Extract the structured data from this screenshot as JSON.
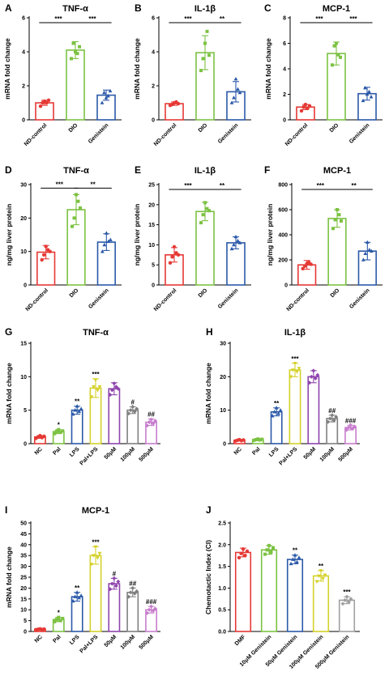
{
  "chart_data": [
    {
      "letter": "A",
      "title": "TNF-α",
      "ylabel": "mRNA fold change",
      "type": "bar",
      "categories": [
        "ND-control",
        "DIO",
        "Genistein"
      ],
      "values": [
        1.0,
        4.1,
        1.45
      ],
      "errors": [
        0.15,
        0.5,
        0.3
      ],
      "points": [
        [
          0.8,
          1.0,
          1.1,
          1.0,
          1.15
        ],
        [
          3.6,
          4.5,
          4.0,
          3.9,
          4.3
        ],
        [
          1.0,
          1.6,
          1.3,
          1.4,
          1.7
        ]
      ],
      "ylim": [
        0,
        6
      ],
      "yticks": [
        0,
        2,
        4,
        6
      ],
      "colors": [
        "#e53935",
        "#7cc242",
        "#2b59a8"
      ],
      "brackets": [
        {
          "from": 0,
          "to": 1,
          "label": "***"
        },
        {
          "from": 1,
          "to": 2,
          "label": "***"
        }
      ],
      "annotations": []
    },
    {
      "letter": "B",
      "title": "IL-1β",
      "ylabel": "mRNA fold change",
      "type": "bar",
      "categories": [
        "ND-control",
        "DIO",
        "Genistein"
      ],
      "values": [
        0.95,
        3.95,
        1.65
      ],
      "errors": [
        0.1,
        1.0,
        0.6
      ],
      "points": [
        [
          0.85,
          0.9,
          1.0,
          1.05,
          0.95
        ],
        [
          2.9,
          3.6,
          4.5,
          5.2,
          3.8
        ],
        [
          1.0,
          1.3,
          2.4,
          1.8,
          1.6
        ]
      ],
      "ylim": [
        0,
        6
      ],
      "yticks": [
        0,
        2,
        4,
        6
      ],
      "colors": [
        "#e53935",
        "#7cc242",
        "#2b59a8"
      ],
      "brackets": [
        {
          "from": 0,
          "to": 1,
          "label": "***"
        },
        {
          "from": 1,
          "to": 2,
          "label": "**"
        }
      ],
      "annotations": []
    },
    {
      "letter": "C",
      "title": "MCP-1",
      "ylabel": "mRNA fold change",
      "type": "bar",
      "categories": [
        "ND-control",
        "DIO",
        "Genistein"
      ],
      "values": [
        1.0,
        5.2,
        2.05
      ],
      "errors": [
        0.2,
        0.9,
        0.5
      ],
      "points": [
        [
          0.7,
          1.0,
          1.2,
          0.9,
          1.1
        ],
        [
          4.3,
          5.8,
          6.0,
          5.1,
          4.9
        ],
        [
          1.5,
          2.5,
          2.0,
          2.2,
          1.8
        ]
      ],
      "ylim": [
        0,
        8
      ],
      "yticks": [
        0,
        2,
        4,
        6,
        8
      ],
      "colors": [
        "#e53935",
        "#7cc242",
        "#2b59a8"
      ],
      "brackets": [
        {
          "from": 0,
          "to": 1,
          "label": "***"
        },
        {
          "from": 1,
          "to": 2,
          "label": "***"
        }
      ],
      "annotations": []
    },
    {
      "letter": "D",
      "title": "TNF-α",
      "ylabel": "ng/mg liver protein",
      "type": "bar",
      "categories": [
        "ND-control",
        "DIO",
        "Genistein"
      ],
      "values": [
        9.8,
        22.5,
        12.8
      ],
      "errors": [
        2.0,
        4.5,
        2.5
      ],
      "points": [
        [
          7.5,
          9.0,
          11.5,
          10.5,
          10.0
        ],
        [
          17.5,
          20.0,
          27.0,
          25.0,
          23.0
        ],
        [
          10.0,
          12.0,
          15.5,
          13.0,
          13.5
        ]
      ],
      "ylim": [
        0,
        30
      ],
      "yticks": [
        0,
        10,
        20,
        30
      ],
      "colors": [
        "#e53935",
        "#7cc242",
        "#2b59a8"
      ],
      "brackets": [
        {
          "from": 0,
          "to": 1,
          "label": "***"
        },
        {
          "from": 1,
          "to": 2,
          "label": "**"
        }
      ],
      "annotations": []
    },
    {
      "letter": "E",
      "title": "IL-1β",
      "ylabel": "ng/mg liver protein",
      "type": "bar",
      "categories": [
        "ND-control",
        "DIO",
        "Genistein"
      ],
      "values": [
        7.5,
        18.3,
        10.5
      ],
      "errors": [
        1.8,
        2.3,
        1.5
      ],
      "points": [
        [
          5.5,
          7.0,
          9.5,
          8.0,
          7.5
        ],
        [
          15.5,
          17.5,
          20.5,
          19.0,
          18.5
        ],
        [
          9.0,
          10.0,
          12.0,
          11.0,
          10.5
        ]
      ],
      "ylim": [
        0,
        25
      ],
      "yticks": [
        0,
        5,
        10,
        15,
        20,
        25
      ],
      "colors": [
        "#e53935",
        "#7cc242",
        "#2b59a8"
      ],
      "brackets": [
        {
          "from": 0,
          "to": 1,
          "label": "***"
        },
        {
          "from": 1,
          "to": 2,
          "label": "**"
        }
      ],
      "annotations": []
    },
    {
      "letter": "F",
      "title": "MCP-1",
      "ylabel": "ng/mg liver protein",
      "type": "bar",
      "categories": [
        "ND-control",
        "DIO",
        "Genistein"
      ],
      "values": [
        160,
        530,
        270
      ],
      "errors": [
        35,
        70,
        70
      ],
      "points": [
        [
          130,
          150,
          170,
          180,
          165
        ],
        [
          450,
          520,
          600,
          560,
          510
        ],
        [
          200,
          250,
          340,
          280,
          270
        ]
      ],
      "ylim": [
        0,
        800
      ],
      "yticks": [
        0,
        200,
        400,
        600,
        800
      ],
      "colors": [
        "#e53935",
        "#7cc242",
        "#2b59a8"
      ],
      "brackets": [
        {
          "from": 0,
          "to": 1,
          "label": "***"
        },
        {
          "from": 1,
          "to": 2,
          "label": "**"
        }
      ],
      "annotations": []
    },
    {
      "letter": "G",
      "title": "TNF-α",
      "ylabel": "mRNA fold change",
      "type": "bar",
      "categories": [
        "NC",
        "Pal",
        "LPS",
        "Pal+LPS",
        "50μM",
        "100μM",
        "500μM"
      ],
      "values": [
        1.0,
        1.8,
        5.0,
        8.3,
        8.2,
        5.0,
        3.2
      ],
      "errors": [
        0.2,
        0.3,
        0.6,
        1.4,
        0.9,
        0.5,
        0.5
      ],
      "points": [
        [
          0.8,
          1.0,
          1.2,
          0.9,
          1.1
        ],
        [
          1.5,
          1.8,
          2.1,
          1.7,
          1.9
        ],
        [
          4.4,
          5.0,
          5.6,
          4.8,
          5.2
        ],
        [
          7.0,
          8.5,
          9.5,
          8.0,
          8.5
        ],
        [
          7.3,
          8.0,
          9.0,
          8.5,
          8.2
        ],
        [
          4.5,
          5.0,
          5.5,
          4.8,
          5.2
        ],
        [
          2.7,
          3.2,
          3.6,
          3.0,
          3.4
        ]
      ],
      "ylim": [
        0,
        15
      ],
      "yticks": [
        0,
        5,
        10,
        15
      ],
      "colors": [
        "#e53935",
        "#7cc242",
        "#2b59a8",
        "#d4d12a",
        "#8e44ad",
        "#808080",
        "#c77dcd"
      ],
      "brackets": [],
      "annotations": [
        "",
        "*",
        "**",
        "***",
        "",
        "#",
        "##"
      ]
    },
    {
      "letter": "H",
      "title": "IL-1β",
      "ylabel": "mRNA fold change",
      "type": "bar",
      "categories": [
        "NC",
        "Pal",
        "LPS",
        "Pal+LPS",
        "50μM",
        "100μM",
        "500μM"
      ],
      "values": [
        1.0,
        1.2,
        9.5,
        22.0,
        20.0,
        7.5,
        4.8
      ],
      "errors": [
        0.2,
        0.3,
        1.2,
        2.0,
        1.8,
        1.0,
        0.7
      ],
      "points": [
        [
          0.8,
          1.0,
          1.2,
          0.9,
          1.1
        ],
        [
          1.0,
          1.2,
          1.4,
          1.1,
          1.3
        ],
        [
          8.3,
          9.5,
          10.7,
          9.0,
          10.0
        ],
        [
          20.0,
          22.0,
          24.0,
          21.5,
          22.5
        ],
        [
          18.2,
          20.0,
          21.8,
          19.5,
          20.5
        ],
        [
          6.5,
          7.5,
          8.5,
          7.0,
          8.0
        ],
        [
          4.1,
          4.8,
          5.5,
          4.5,
          5.1
        ]
      ],
      "ylim": [
        0,
        30
      ],
      "yticks": [
        0,
        10,
        20,
        30
      ],
      "colors": [
        "#e53935",
        "#7cc242",
        "#2b59a8",
        "#d4d12a",
        "#8e44ad",
        "#808080",
        "#c77dcd"
      ],
      "brackets": [],
      "annotations": [
        "",
        "",
        "**",
        "***",
        "",
        "##",
        "###"
      ]
    },
    {
      "letter": "I",
      "title": "MCP-1",
      "ylabel": "mRNA fold change",
      "type": "bar",
      "categories": [
        "NC",
        "Pal",
        "LPS",
        "Pal+LPS",
        "50μM",
        "100μM",
        "500μM"
      ],
      "values": [
        1.0,
        5.5,
        16.0,
        35.0,
        22.0,
        18.0,
        10.0
      ],
      "errors": [
        0.2,
        1.0,
        2.0,
        4.0,
        2.5,
        2.0,
        1.5
      ],
      "points": [
        [
          0.8,
          1.0,
          1.2,
          0.9,
          1.1
        ],
        [
          4.5,
          5.5,
          6.5,
          5.0,
          6.0
        ],
        [
          14.0,
          16.0,
          18.0,
          15.5,
          16.5
        ],
        [
          31.0,
          35.0,
          39.0,
          34.0,
          36.0
        ],
        [
          19.5,
          22.0,
          24.5,
          21.0,
          23.0
        ],
        [
          16.0,
          18.0,
          20.0,
          17.5,
          18.5
        ],
        [
          8.5,
          10.0,
          11.5,
          9.5,
          10.5
        ]
      ],
      "ylim": [
        0,
        50
      ],
      "yticks": [
        0,
        5,
        10,
        15,
        20,
        25,
        30,
        35,
        40,
        45,
        50
      ],
      "colors": [
        "#e53935",
        "#7cc242",
        "#2b59a8",
        "#d4d12a",
        "#8e44ad",
        "#808080",
        "#c77dcd"
      ],
      "brackets": [],
      "annotations": [
        "",
        "*",
        "**",
        "***",
        "#",
        "##",
        "###"
      ]
    },
    {
      "letter": "J",
      "title": "",
      "ylabel": "Chemotactic Index (CI)",
      "type": "bar",
      "categories": [
        "DMF",
        "10μM Genistein",
        "50μM Genistein",
        "100μM Genistein",
        "500μM Genistein"
      ],
      "values": [
        1.82,
        1.88,
        1.66,
        1.28,
        0.72
      ],
      "errors": [
        0.1,
        0.1,
        0.1,
        0.12,
        0.08
      ],
      "points": [
        [
          1.7,
          1.8,
          1.9,
          1.75,
          1.85
        ],
        [
          1.78,
          1.88,
          1.98,
          1.83,
          1.93
        ],
        [
          1.56,
          1.66,
          1.76,
          1.6,
          1.7
        ],
        [
          1.15,
          1.28,
          1.4,
          1.22,
          1.3
        ],
        [
          0.64,
          0.72,
          0.8,
          0.68,
          0.75
        ]
      ],
      "ylim": [
        0,
        2.5
      ],
      "yticks": [
        0.0,
        0.5,
        1.0,
        1.5,
        2.0,
        2.5
      ],
      "colors": [
        "#e53935",
        "#7cc242",
        "#2b59a8",
        "#d4d12a",
        "#a0a0a0"
      ],
      "brackets": [],
      "annotations": [
        "",
        "",
        "**",
        "**",
        "***"
      ]
    }
  ]
}
